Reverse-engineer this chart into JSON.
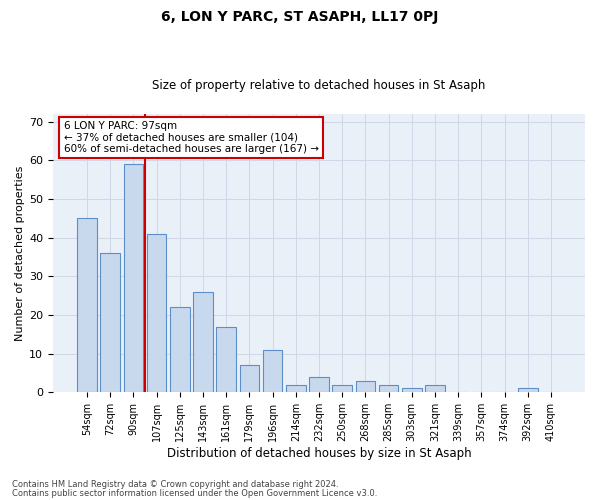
{
  "title": "6, LON Y PARC, ST ASAPH, LL17 0PJ",
  "subtitle": "Size of property relative to detached houses in St Asaph",
  "xlabel": "Distribution of detached houses by size in St Asaph",
  "ylabel": "Number of detached properties",
  "categories": [
    "54sqm",
    "72sqm",
    "90sqm",
    "107sqm",
    "125sqm",
    "143sqm",
    "161sqm",
    "179sqm",
    "196sqm",
    "214sqm",
    "232sqm",
    "250sqm",
    "268sqm",
    "285sqm",
    "303sqm",
    "321sqm",
    "339sqm",
    "357sqm",
    "374sqm",
    "392sqm",
    "410sqm"
  ],
  "values": [
    45,
    36,
    59,
    41,
    22,
    26,
    17,
    7,
    11,
    2,
    4,
    2,
    3,
    2,
    1,
    2,
    0,
    0,
    0,
    1,
    0
  ],
  "bar_color": "#c9d9ed",
  "bar_edge_color": "#5b8fc9",
  "grid_color": "#d0d8e8",
  "background_color": "#eaf0f8",
  "vline_color": "#cc0000",
  "vline_x_index": 2.5,
  "annotation_text": "6 LON Y PARC: 97sqm\n← 37% of detached houses are smaller (104)\n60% of semi-detached houses are larger (167) →",
  "annotation_box_color": "#ffffff",
  "annotation_box_edge": "#cc0000",
  "ylim": [
    0,
    72
  ],
  "yticks": [
    0,
    10,
    20,
    30,
    40,
    50,
    60,
    70
  ],
  "footer_line1": "Contains HM Land Registry data © Crown copyright and database right 2024.",
  "footer_line2": "Contains public sector information licensed under the Open Government Licence v3.0."
}
